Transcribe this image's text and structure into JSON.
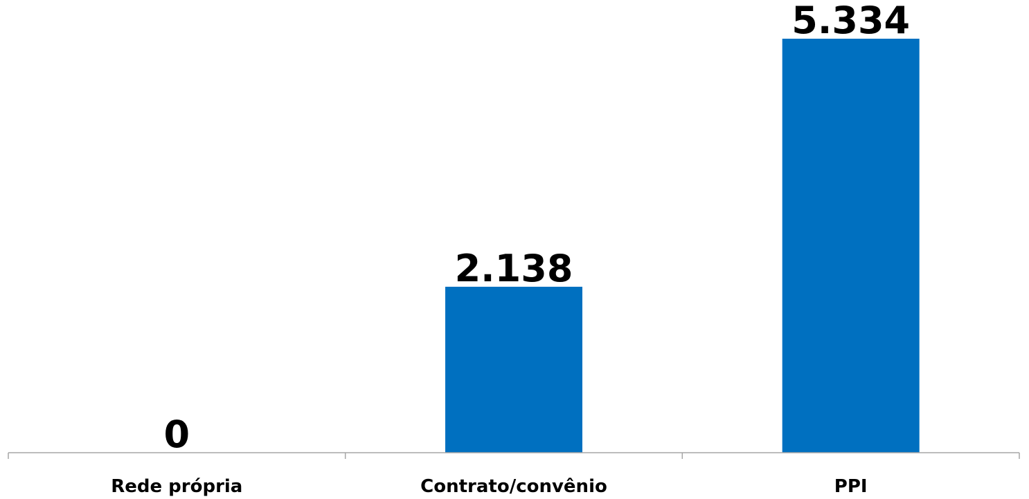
{
  "chart_data": {
    "type": "bar",
    "categories": [
      "Rede própria",
      "Contrato/convênio",
      "PPI"
    ],
    "values": [
      0,
      2138,
      5334
    ],
    "value_labels": [
      "0",
      "2.138",
      "5.334"
    ],
    "title": "",
    "xlabel": "",
    "ylabel": "",
    "ylim": [
      0,
      5334
    ],
    "grid": false,
    "legend": "none",
    "colors": {
      "bar": "#0070C0",
      "axis": "#a6a6a6",
      "text": "#000000"
    }
  }
}
